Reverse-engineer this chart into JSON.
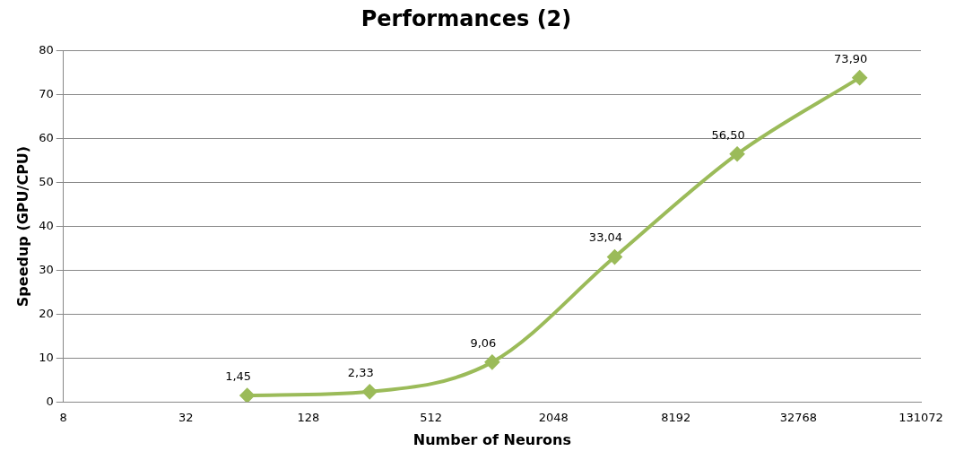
{
  "chart_data": {
    "type": "line",
    "title": "Performances (2)",
    "xlabel": "Number of Neurons",
    "ylabel": "Speedup (GPU/CPU)",
    "x": [
      64,
      256,
      1024,
      4096,
      16384,
      65536
    ],
    "series": [
      {
        "color": "#9bbb59",
        "values": [
          1.45,
          2.33,
          9.06,
          33.04,
          56.5,
          73.9
        ],
        "value_labels": [
          "1,45",
          "2,33",
          "9,06",
          "33,04",
          "56,50",
          "73,90"
        ]
      }
    ],
    "log": "x",
    "xlim": [
      8,
      131072
    ],
    "xticks": [
      8,
      32,
      128,
      512,
      2048,
      8192,
      32768,
      131072
    ],
    "ylim": [
      0,
      80
    ],
    "yticks": [
      0,
      10,
      20,
      30,
      40,
      50,
      60,
      70,
      80
    ],
    "grid": "y",
    "legend": false,
    "marker": "diamond",
    "line_style": "solid"
  }
}
